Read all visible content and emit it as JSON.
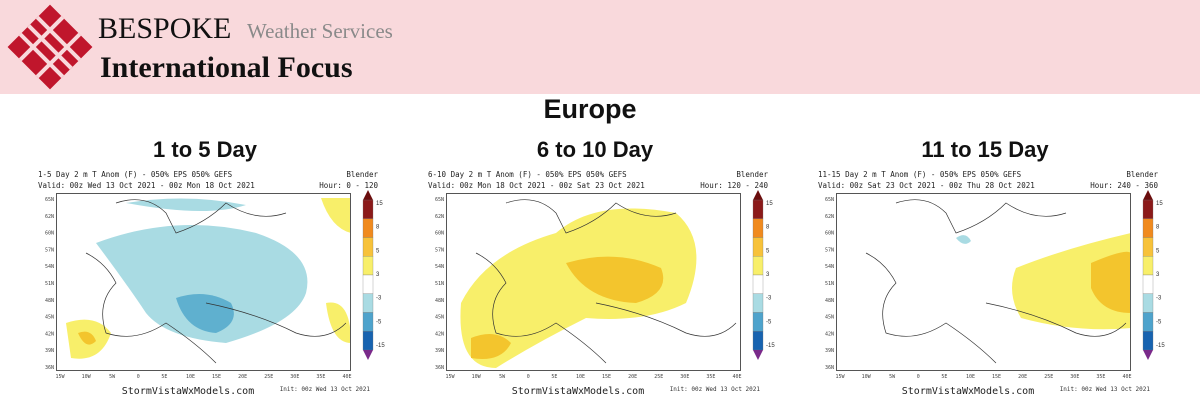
{
  "header": {
    "brand": "BESPOKE",
    "tagline": "Weather Services",
    "title": "International Focus"
  },
  "region": "Europe",
  "map_axes": {
    "lat_labels": [
      "65N",
      "62N",
      "60N",
      "57N",
      "54N",
      "51N",
      "48N",
      "45N",
      "42N",
      "39N",
      "36N"
    ],
    "lon_labels": [
      "15W",
      "10W",
      "5W",
      "0",
      "5E",
      "10E",
      "15E",
      "20E",
      "25E",
      "30E",
      "35E",
      "40E"
    ]
  },
  "colorbar_labels": [
    "15",
    "8",
    "5",
    "3",
    "-3",
    "-5",
    "-15"
  ],
  "panels": [
    {
      "title": "1 to 5 Day",
      "product": "1-5 Day 2 m T Anom (F) - 050% EPS 050% GEFS",
      "model": "Blender",
      "valid": "Valid: 00z Wed 13 Oct 2021 - 00z Mon 18 Oct 2021",
      "hours": "Hour: 0 - 120",
      "source": "StormVistaWxModels.com",
      "init": "Init: 00z Wed 13 Oct 2021"
    },
    {
      "title": "6 to 10 Day",
      "product": "6-10 Day 2 m T Anom (F) - 050% EPS 050% GEFS",
      "model": "Blender",
      "valid": "Valid: 00z Mon 18 Oct 2021 - 00z Sat 23 Oct 2021",
      "hours": "Hour: 120 - 240",
      "source": "StormVistaWxModels.com",
      "init": "Init: 00z Wed 13 Oct 2021"
    },
    {
      "title": "11 to 15 Day",
      "product": "11-15 Day 2 m T Anom (F) - 050% EPS 050% GEFS",
      "model": "Blender",
      "valid": "Valid: 00z Sat 23 Oct 2021 - 00z Thu 28 Oct 2021",
      "hours": "Hour: 240 - 360",
      "source": "StormVistaWxModels.com",
      "init": "Init: 00z Wed 13 Oct 2021"
    }
  ]
}
